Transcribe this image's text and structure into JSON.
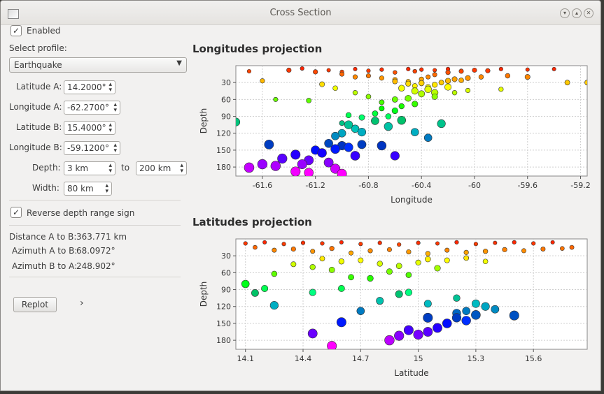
{
  "window": {
    "title": "Cross Section"
  },
  "controls": {
    "enabled_label": "Enabled",
    "select_profile_label": "Select profile:",
    "profile_value": "Earthquake",
    "lat_a_label": "Latitude A:",
    "lat_a_value": "14.2000°",
    "lon_a_label": "Longitude A:",
    "lon_a_value": "-62.2700°",
    "lat_b_label": "Latitude B:",
    "lat_b_value": "15.4000°",
    "lon_b_label": "Longitude B:",
    "lon_b_value": "-59.1200°",
    "depth_label": "Depth:",
    "depth_from": "3 km",
    "to_label": "to",
    "depth_to": "200 km",
    "width_label": "Width:",
    "width_value": "80 km",
    "reverse_label": "Reverse depth range sign",
    "dist_label": "Distance  A to B:",
    "dist_value": "363.771 km",
    "az_ab_label": "Azimuth A to B:",
    "az_ab_value": "68.0972°",
    "az_ba_label": "Azimuth B to A:",
    "az_ba_value": "248.902°",
    "replot_label": "Replot",
    "expand_glyph": "›"
  },
  "chart_data": [
    {
      "type": "scatter",
      "title": "Longitudes projection",
      "xlabel": "Longitude",
      "ylabel": "Depth",
      "xlim": [
        -61.8,
        -59.15
      ],
      "ylim": [
        196,
        0
      ],
      "xticks": [
        -61.6,
        -61.2,
        -60.8,
        -60.4,
        -60,
        -59.6,
        -59.2
      ],
      "yticks": [
        30,
        60,
        90,
        120,
        150,
        180
      ],
      "x_decimals": 1,
      "grid": true,
      "points": [
        [
          -61.7,
          5,
          10
        ],
        [
          -61.3,
          5,
          5
        ],
        [
          -61.1,
          4,
          8
        ],
        [
          -61.0,
          6,
          11
        ],
        [
          -60.9,
          4,
          6
        ],
        [
          -60.8,
          6,
          9
        ],
        [
          -60.7,
          5,
          7
        ],
        [
          -60.6,
          7,
          12
        ],
        [
          -60.5,
          5,
          6
        ],
        [
          -60.45,
          8,
          10
        ],
        [
          -60.4,
          6,
          7
        ],
        [
          -60.3,
          4,
          8
        ],
        [
          -60.2,
          5,
          6
        ],
        [
          -60.1,
          3,
          9
        ],
        [
          -59.8,
          5,
          6
        ],
        [
          -59.6,
          3,
          7
        ],
        [
          -59.4,
          4,
          6
        ],
        [
          -61.4,
          15,
          8
        ],
        [
          -61.2,
          14,
          11
        ],
        [
          -61.0,
          12,
          15
        ],
        [
          -60.9,
          14,
          20
        ],
        [
          -60.8,
          13,
          18
        ],
        [
          -60.7,
          15,
          22
        ],
        [
          -60.6,
          16,
          25
        ],
        [
          -60.5,
          12,
          28
        ],
        [
          -60.4,
          14,
          24
        ],
        [
          -60.35,
          13,
          20
        ],
        [
          -60.3,
          12,
          16
        ],
        [
          -60.2,
          14,
          12
        ],
        [
          -60.1,
          13,
          10
        ],
        [
          -60.0,
          13,
          8
        ],
        [
          -59.9,
          14,
          9
        ],
        [
          -60.6,
          20,
          28
        ],
        [
          -60.5,
          24,
          32
        ],
        [
          -60.45,
          21,
          36
        ],
        [
          -60.4,
          26,
          31
        ],
        [
          -60.35,
          22,
          38
        ],
        [
          -60.3,
          24,
          34
        ],
        [
          -60.25,
          20,
          30
        ],
        [
          -60.2,
          25,
          27
        ],
        [
          -60.15,
          22,
          24
        ],
        [
          -60.1,
          18,
          26
        ],
        [
          -60.05,
          23,
          22
        ],
        [
          -59.95,
          17,
          20
        ],
        [
          -59.75,
          16,
          18
        ],
        [
          -59.6,
          22,
          20
        ],
        [
          -59.3,
          21,
          30
        ],
        [
          -59.15,
          20,
          30
        ],
        [
          -60.55,
          35,
          40
        ],
        [
          -60.45,
          40,
          45
        ],
        [
          -60.4,
          38,
          50
        ],
        [
          -60.35,
          45,
          42
        ],
        [
          -60.3,
          42,
          48
        ],
        [
          -60.5,
          36,
          58
        ],
        [
          -60.6,
          30,
          60
        ],
        [
          -60.45,
          34,
          68
        ],
        [
          -60.3,
          31,
          55
        ],
        [
          -60.2,
          40,
          38
        ],
        [
          -60.55,
          25,
          72
        ],
        [
          -60.7,
          20,
          65
        ],
        [
          -60.8,
          18,
          55
        ],
        [
          -60.9,
          16,
          48
        ],
        [
          -61.05,
          18,
          40
        ],
        [
          -61.15,
          22,
          33
        ],
        [
          -61.25,
          18,
          62
        ],
        [
          -61.5,
          12,
          60
        ],
        [
          -61.6,
          14,
          27
        ],
        [
          -59.8,
          14,
          42
        ],
        [
          -60.05,
          14,
          44
        ],
        [
          -60.15,
          16,
          48
        ],
        [
          -60.75,
          30,
          85
        ],
        [
          -60.85,
          30,
          92
        ],
        [
          -60.95,
          25,
          88
        ],
        [
          -60.65,
          28,
          90
        ],
        [
          -60.6,
          33,
          80
        ],
        [
          -60.7,
          23,
          76
        ],
        [
          -61.0,
          23,
          102
        ],
        [
          -60.9,
          55,
          112
        ],
        [
          -61.0,
          57,
          120
        ],
        [
          -61.05,
          58,
          125
        ],
        [
          -60.85,
          60,
          118
        ],
        [
          -60.95,
          62,
          105
        ],
        [
          -60.75,
          55,
          98
        ],
        [
          -60.65,
          62,
          108
        ],
        [
          -60.55,
          63,
          97
        ],
        [
          -60.45,
          56,
          118
        ],
        [
          -61.1,
          65,
          138
        ],
        [
          -61.0,
          68,
          142
        ],
        [
          -60.95,
          70,
          145
        ],
        [
          -61.2,
          68,
          150
        ],
        [
          -61.15,
          72,
          155
        ],
        [
          -61.05,
          73,
          148
        ],
        [
          -60.85,
          66,
          140
        ],
        [
          -60.9,
          74,
          160
        ],
        [
          -61.25,
          76,
          168
        ],
        [
          -61.3,
          77,
          175
        ],
        [
          -61.35,
          78,
          158
        ],
        [
          -61.45,
          80,
          165
        ],
        [
          -61.5,
          82,
          178
        ],
        [
          -61.6,
          81,
          175
        ],
        [
          -61.7,
          83,
          181
        ],
        [
          -61.25,
          73,
          190
        ],
        [
          -61.1,
          76,
          172
        ],
        [
          -61.35,
          80,
          188
        ],
        [
          -61.05,
          79,
          183
        ],
        [
          -60.7,
          72,
          142
        ],
        [
          -60.6,
          71,
          160
        ],
        [
          -61.0,
          77,
          192
        ],
        [
          -61.55,
          76,
          140
        ],
        [
          -61.8,
          60,
          100
        ],
        [
          -60.35,
          55,
          128
        ],
        [
          -60.25,
          60,
          103
        ]
      ]
    },
    {
      "type": "scatter",
      "title": "Latitudes projection",
      "xlabel": "Latitude",
      "ylabel": "Depth",
      "xlim": [
        14.05,
        15.88
      ],
      "ylim": [
        196,
        0
      ],
      "xticks": [
        14.1,
        14.4,
        14.7,
        15,
        15.3,
        15.6
      ],
      "yticks": [
        30,
        60,
        90,
        120,
        150,
        180
      ],
      "x_decimals": 1,
      "grid": true,
      "points": [
        [
          14.1,
          5,
          8
        ],
        [
          14.2,
          4,
          6
        ],
        [
          14.3,
          5,
          9
        ],
        [
          14.4,
          6,
          7
        ],
        [
          14.5,
          5,
          8
        ],
        [
          14.6,
          4,
          6
        ],
        [
          14.7,
          6,
          9
        ],
        [
          14.8,
          5,
          7
        ],
        [
          14.9,
          6,
          10
        ],
        [
          15.0,
          5,
          7
        ],
        [
          15.1,
          4,
          8
        ],
        [
          15.2,
          6,
          6
        ],
        [
          15.3,
          5,
          9
        ],
        [
          15.4,
          4,
          7
        ],
        [
          15.5,
          6,
          6
        ],
        [
          15.6,
          5,
          8
        ],
        [
          15.7,
          4,
          6
        ],
        [
          14.15,
          10,
          15
        ],
        [
          14.25,
          12,
          20
        ],
        [
          14.35,
          14,
          18
        ],
        [
          14.45,
          12,
          22
        ],
        [
          14.55,
          14,
          17
        ],
        [
          14.65,
          13,
          25
        ],
        [
          14.75,
          15,
          21
        ],
        [
          14.85,
          13,
          19
        ],
        [
          14.95,
          14,
          23
        ],
        [
          15.05,
          15,
          26
        ],
        [
          15.15,
          13,
          20
        ],
        [
          15.25,
          14,
          24
        ],
        [
          15.35,
          16,
          22
        ],
        [
          15.45,
          14,
          19
        ],
        [
          15.55,
          13,
          21
        ],
        [
          15.65,
          12,
          18
        ],
        [
          15.75,
          10,
          17
        ],
        [
          15.8,
          11,
          15
        ],
        [
          14.5,
          20,
          35
        ],
        [
          14.6,
          25,
          40
        ],
        [
          14.7,
          22,
          38
        ],
        [
          14.8,
          26,
          44
        ],
        [
          14.9,
          30,
          48
        ],
        [
          15.0,
          24,
          42
        ],
        [
          15.05,
          28,
          36
        ],
        [
          14.85,
          32,
          58
        ],
        [
          14.95,
          28,
          64
        ],
        [
          14.75,
          35,
          70
        ],
        [
          14.55,
          30,
          55
        ],
        [
          14.45,
          26,
          50
        ],
        [
          14.35,
          22,
          45
        ],
        [
          14.25,
          28,
          62
        ],
        [
          15.15,
          22,
          38
        ],
        [
          15.25,
          20,
          34
        ],
        [
          15.35,
          18,
          40
        ],
        [
          15.1,
          34,
          52
        ],
        [
          14.65,
          30,
          68
        ],
        [
          14.2,
          40,
          88
        ],
        [
          14.15,
          48,
          96
        ],
        [
          14.45,
          42,
          95
        ],
        [
          14.6,
          38,
          88
        ],
        [
          14.8,
          50,
          110
        ],
        [
          14.95,
          44,
          95
        ],
        [
          15.05,
          50,
          115
        ],
        [
          15.2,
          45,
          105
        ],
        [
          14.9,
          50,
          98
        ],
        [
          15.3,
          58,
          115
        ],
        [
          15.35,
          60,
          120
        ],
        [
          15.4,
          57,
          125
        ],
        [
          15.25,
          55,
          128
        ],
        [
          15.2,
          62,
          132
        ],
        [
          14.7,
          56,
          128
        ],
        [
          14.25,
          60,
          118
        ],
        [
          15.2,
          70,
          140
        ],
        [
          15.25,
          72,
          145
        ],
        [
          15.3,
          74,
          135
        ],
        [
          15.15,
          73,
          150
        ],
        [
          15.1,
          75,
          158
        ],
        [
          14.95,
          78,
          162
        ],
        [
          15.0,
          80,
          170
        ],
        [
          15.05,
          76,
          165
        ],
        [
          14.85,
          82,
          180
        ],
        [
          14.9,
          80,
          172
        ],
        [
          14.6,
          78,
          148
        ],
        [
          14.45,
          76,
          168
        ],
        [
          14.55,
          78,
          190
        ],
        [
          15.5,
          78,
          136
        ],
        [
          15.05,
          77,
          140
        ],
        [
          14.1,
          55,
          80
        ]
      ]
    }
  ]
}
